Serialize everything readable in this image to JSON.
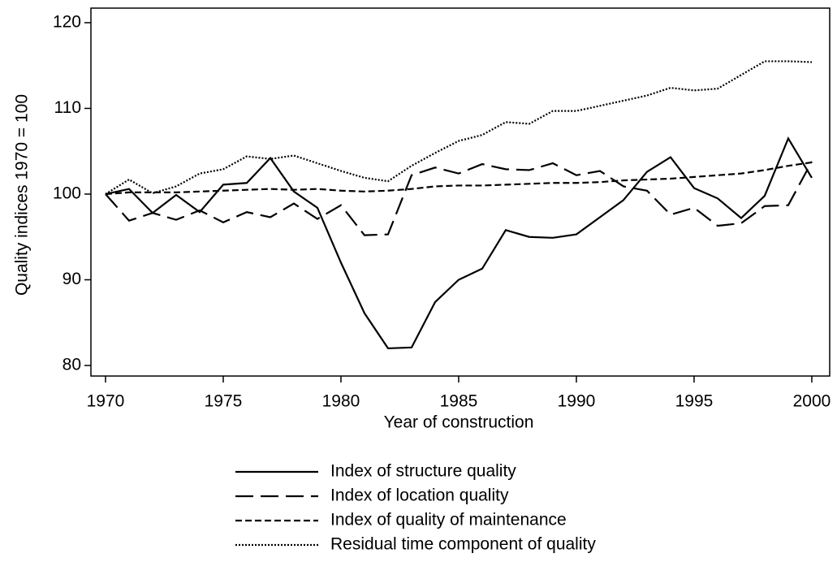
{
  "chart_data": {
    "type": "line",
    "x_label": "Year of construction",
    "y_label": "Quality indices 1970 = 100",
    "x": [
      1970,
      1971,
      1972,
      1973,
      1974,
      1975,
      1976,
      1977,
      1978,
      1979,
      1980,
      1981,
      1982,
      1983,
      1984,
      1985,
      1986,
      1987,
      1988,
      1989,
      1990,
      1991,
      1992,
      1993,
      1994,
      1995,
      1996,
      1997,
      1998,
      1999,
      2000
    ],
    "series": [
      {
        "name": "Index of structure quality",
        "color": "#000000",
        "style": "solid",
        "values": [
          100,
          100.6,
          97.8,
          99.9,
          97.9,
          101.1,
          101.3,
          104.2,
          100.3,
          98.4,
          92,
          86.1,
          82,
          82.1,
          87.4,
          90,
          91.3,
          95.8,
          95,
          94.9,
          95.3,
          97.3,
          99.3,
          102.6,
          104.3,
          100.7,
          99.5,
          97.2,
          99.8,
          106.5,
          101.9
        ]
      },
      {
        "name": "Index of location quality",
        "color": "#000000",
        "style": "long-dash",
        "values": [
          100,
          96.9,
          97.8,
          97,
          98.1,
          96.7,
          97.9,
          97.3,
          98.9,
          97.1,
          98.7,
          95.2,
          95.3,
          102.2,
          103.1,
          102.4,
          103.5,
          102.9,
          102.8,
          103.6,
          102.2,
          102.7,
          100.9,
          100.4,
          97.6,
          98.4,
          96.3,
          96.6,
          98.6,
          98.7,
          103.8
        ]
      },
      {
        "name": "Index of quality of maintenance",
        "color": "#000000",
        "style": "dash",
        "values": [
          100,
          100.2,
          100.2,
          100.2,
          100.3,
          100.4,
          100.5,
          100.6,
          100.5,
          100.6,
          100.4,
          100.3,
          100.4,
          100.6,
          100.9,
          101,
          101,
          101.1,
          101.2,
          101.3,
          101.3,
          101.4,
          101.6,
          101.7,
          101.8,
          102,
          102.2,
          102.4,
          102.8,
          103.3,
          103.7
        ]
      },
      {
        "name": "Residual time component of quality",
        "color": "#000000",
        "style": "dot",
        "values": [
          100,
          101.7,
          100.1,
          100.9,
          102.4,
          102.9,
          104.4,
          104.1,
          104.5,
          103.6,
          102.7,
          101.9,
          101.5,
          103.3,
          104.8,
          106.2,
          106.9,
          108.4,
          108.2,
          109.7,
          109.7,
          110.3,
          110.9,
          111.5,
          112.4,
          112.1,
          112.3,
          113.9,
          115.5,
          115.5,
          115.4
        ]
      }
    ],
    "xlim": [
      1969.38,
      2000.76
    ],
    "xticks": [
      1970,
      1975,
      1980,
      1985,
      1990,
      1995,
      2000
    ],
    "ylim": [
      78.77,
      121.7
    ],
    "yticks": [
      80,
      90,
      100,
      110,
      120
    ],
    "grid": false,
    "legend": "bottom"
  }
}
